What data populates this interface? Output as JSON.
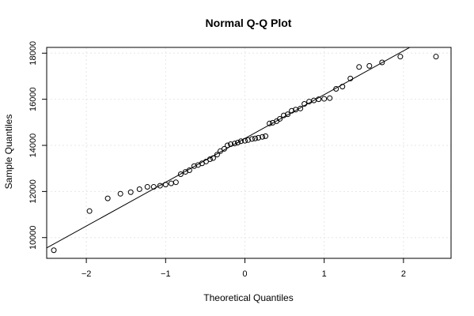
{
  "chart_data": {
    "type": "scatter",
    "title": "Normal Q-Q Plot",
    "xlabel": "Theoretical Quantiles",
    "ylabel": "Sample Quantiles",
    "xlim": [
      -2.5,
      2.6
    ],
    "ylim": [
      9100,
      18250
    ],
    "xticks": [
      -2,
      -1,
      0,
      1,
      2
    ],
    "xtick_labels": [
      "−2",
      "−1",
      "0",
      "1",
      "2"
    ],
    "yticks": [
      10000,
      12000,
      14000,
      16000,
      18000
    ],
    "ytick_labels": [
      "10000",
      "12000",
      "14000",
      "16000",
      "18000"
    ],
    "grid": true,
    "reference_line": {
      "slope": 1900,
      "intercept": 14300
    },
    "points": [
      {
        "x": -2.41,
        "y": 9450
      },
      {
        "x": -1.96,
        "y": 11150
      },
      {
        "x": -1.73,
        "y": 11700
      },
      {
        "x": -1.57,
        "y": 11900
      },
      {
        "x": -1.44,
        "y": 11970
      },
      {
        "x": -1.33,
        "y": 12100
      },
      {
        "x": -1.23,
        "y": 12200
      },
      {
        "x": -1.15,
        "y": 12200
      },
      {
        "x": -1.07,
        "y": 12250
      },
      {
        "x": -1.0,
        "y": 12300
      },
      {
        "x": -0.93,
        "y": 12350
      },
      {
        "x": -0.87,
        "y": 12400
      },
      {
        "x": -0.81,
        "y": 12750
      },
      {
        "x": -0.75,
        "y": 12850
      },
      {
        "x": -0.7,
        "y": 12920
      },
      {
        "x": -0.64,
        "y": 13100
      },
      {
        "x": -0.59,
        "y": 13150
      },
      {
        "x": -0.54,
        "y": 13220
      },
      {
        "x": -0.49,
        "y": 13300
      },
      {
        "x": -0.44,
        "y": 13400
      },
      {
        "x": -0.4,
        "y": 13450
      },
      {
        "x": -0.35,
        "y": 13600
      },
      {
        "x": -0.31,
        "y": 13750
      },
      {
        "x": -0.26,
        "y": 13850
      },
      {
        "x": -0.22,
        "y": 14000
      },
      {
        "x": -0.18,
        "y": 14050
      },
      {
        "x": -0.13,
        "y": 14080
      },
      {
        "x": -0.09,
        "y": 14120
      },
      {
        "x": -0.05,
        "y": 14180
      },
      {
        "x": 0.0,
        "y": 14200
      },
      {
        "x": 0.04,
        "y": 14230
      },
      {
        "x": 0.09,
        "y": 14280
      },
      {
        "x": 0.13,
        "y": 14300
      },
      {
        "x": 0.17,
        "y": 14330
      },
      {
        "x": 0.22,
        "y": 14370
      },
      {
        "x": 0.26,
        "y": 14400
      },
      {
        "x": 0.31,
        "y": 14950
      },
      {
        "x": 0.35,
        "y": 14980
      },
      {
        "x": 0.4,
        "y": 15050
      },
      {
        "x": 0.44,
        "y": 15150
      },
      {
        "x": 0.49,
        "y": 15300
      },
      {
        "x": 0.54,
        "y": 15350
      },
      {
        "x": 0.59,
        "y": 15500
      },
      {
        "x": 0.64,
        "y": 15550
      },
      {
        "x": 0.7,
        "y": 15600
      },
      {
        "x": 0.75,
        "y": 15800
      },
      {
        "x": 0.81,
        "y": 15900
      },
      {
        "x": 0.87,
        "y": 15950
      },
      {
        "x": 0.93,
        "y": 16000
      },
      {
        "x": 1.0,
        "y": 16020
      },
      {
        "x": 1.07,
        "y": 16050
      },
      {
        "x": 1.15,
        "y": 16450
      },
      {
        "x": 1.23,
        "y": 16550
      },
      {
        "x": 1.33,
        "y": 16900
      },
      {
        "x": 1.44,
        "y": 17400
      },
      {
        "x": 1.57,
        "y": 17450
      },
      {
        "x": 1.73,
        "y": 17600
      },
      {
        "x": 1.96,
        "y": 17850
      },
      {
        "x": 2.41,
        "y": 17850
      }
    ]
  }
}
